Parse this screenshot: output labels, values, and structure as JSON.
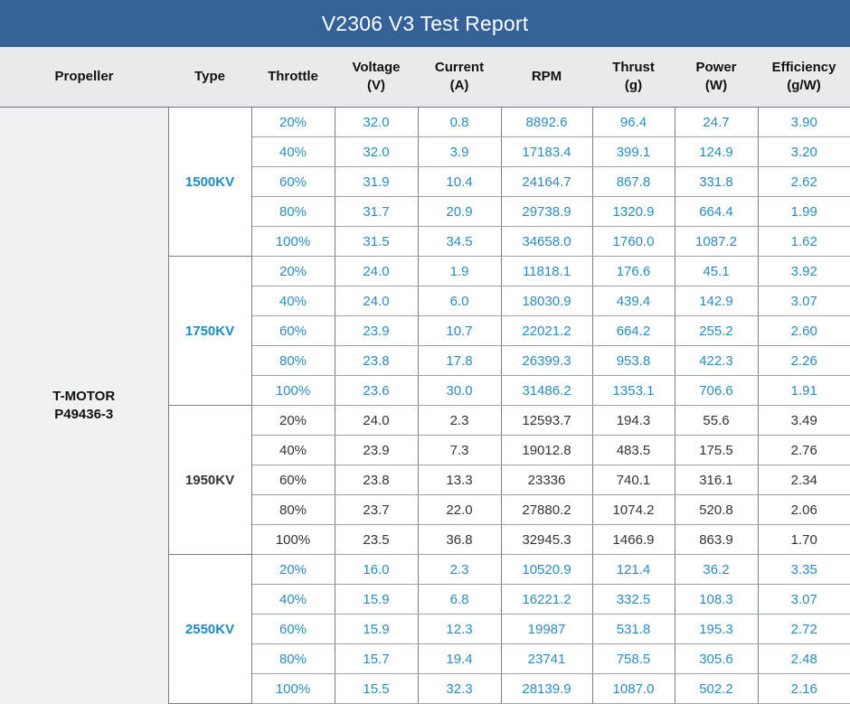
{
  "title": "V2306 V3 Test Report",
  "columns": [
    {
      "label": "Propeller",
      "sub": ""
    },
    {
      "label": "Type",
      "sub": ""
    },
    {
      "label": "Throttle",
      "sub": ""
    },
    {
      "label": "Voltage",
      "sub": "(V)"
    },
    {
      "label": "Current",
      "sub": "(A)"
    },
    {
      "label": "RPM",
      "sub": ""
    },
    {
      "label": "Thrust",
      "sub": "(g)"
    },
    {
      "label": "Power",
      "sub": "(W)"
    },
    {
      "label": "Efficiency",
      "sub": "(g/W)"
    }
  ],
  "propeller": {
    "line1": "T-MOTOR",
    "line2": "P49436-3"
  },
  "colors": {
    "header_bg": "#346298",
    "accent_blue": "#2a8bc0",
    "type_blue": "#1c8ac0",
    "dark_text": "#333333"
  },
  "groups": [
    {
      "type": "1500KV",
      "style": "blue",
      "rows": [
        [
          "20%",
          "32.0",
          "0.8",
          "8892.6",
          "96.4",
          "24.7",
          "3.90"
        ],
        [
          "40%",
          "32.0",
          "3.9",
          "17183.4",
          "399.1",
          "124.9",
          "3.20"
        ],
        [
          "60%",
          "31.9",
          "10.4",
          "24164.7",
          "867.8",
          "331.8",
          "2.62"
        ],
        [
          "80%",
          "31.7",
          "20.9",
          "29738.9",
          "1320.9",
          "664.4",
          "1.99"
        ],
        [
          "100%",
          "31.5",
          "34.5",
          "34658.0",
          "1760.0",
          "1087.2",
          "1.62"
        ]
      ]
    },
    {
      "type": "1750KV",
      "style": "blue",
      "rows": [
        [
          "20%",
          "24.0",
          "1.9",
          "11818.1",
          "176.6",
          "45.1",
          "3.92"
        ],
        [
          "40%",
          "24.0",
          "6.0",
          "18030.9",
          "439.4",
          "142.9",
          "3.07"
        ],
        [
          "60%",
          "23.9",
          "10.7",
          "22021.2",
          "664.2",
          "255.2",
          "2.60"
        ],
        [
          "80%",
          "23.8",
          "17.8",
          "26399.3",
          "953.8",
          "422.3",
          "2.26"
        ],
        [
          "100%",
          "23.6",
          "30.0",
          "31486.2",
          "1353.1",
          "706.6",
          "1.91"
        ]
      ]
    },
    {
      "type": "1950KV",
      "style": "dark",
      "rows": [
        [
          "20%",
          "24.0",
          "2.3",
          "12593.7",
          "194.3",
          "55.6",
          "3.49"
        ],
        [
          "40%",
          "23.9",
          "7.3",
          "19012.8",
          "483.5",
          "175.5",
          "2.76"
        ],
        [
          "60%",
          "23.8",
          "13.3",
          "23336",
          "740.1",
          "316.1",
          "2.34"
        ],
        [
          "80%",
          "23.7",
          "22.0",
          "27880.2",
          "1074.2",
          "520.8",
          "2.06"
        ],
        [
          "100%",
          "23.5",
          "36.8",
          "32945.3",
          "1466.9",
          "863.9",
          "1.70"
        ]
      ]
    },
    {
      "type": "2550KV",
      "style": "blue",
      "rows": [
        [
          "20%",
          "16.0",
          "2.3",
          "10520.9",
          "121.4",
          "36.2",
          "3.35"
        ],
        [
          "40%",
          "15.9",
          "6.8",
          "16221.2",
          "332.5",
          "108.3",
          "3.07"
        ],
        [
          "60%",
          "15.9",
          "12.3",
          "19987",
          "531.8",
          "195.3",
          "2.72"
        ],
        [
          "80%",
          "15.7",
          "19.4",
          "23741",
          "758.5",
          "305.6",
          "2.48"
        ],
        [
          "100%",
          "15.5",
          "32.3",
          "28139.9",
          "1087.0",
          "502.2",
          "2.16"
        ]
      ]
    }
  ]
}
